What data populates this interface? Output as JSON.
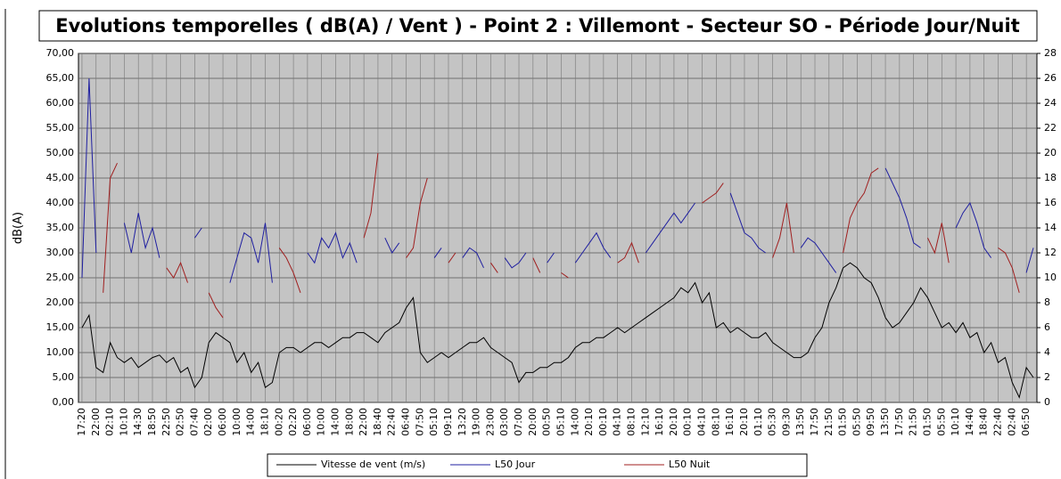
{
  "chart_data": {
    "type": "line",
    "title": "Evolutions temporelles ( dB(A) / Vent ) - Point 2 : Villemont - Secteur SO - Période Jour/Nuit",
    "y_label": "dB(A)",
    "categories": [
      "17:20",
      null,
      "22:00",
      null,
      "02:10",
      null,
      "10:10",
      null,
      "14:30",
      null,
      "18:50",
      null,
      "22:50",
      null,
      "02:50",
      null,
      "07:40",
      null,
      "02:00",
      null,
      "06:00",
      null,
      "10:00",
      null,
      "14:00",
      null,
      "18:10",
      null,
      "00:20",
      null,
      "02:20",
      null,
      "06:00",
      null,
      "10:00",
      null,
      "14:00",
      null,
      "18:00",
      null,
      "22:00",
      null,
      "18:40",
      null,
      "22:40",
      null,
      "06:40",
      null,
      "07:50",
      null,
      "05:10",
      null,
      "09:10",
      null,
      "13:20",
      null,
      "19:00",
      null,
      "23:00",
      null,
      "03:00",
      null,
      "07:00",
      null,
      "20:00",
      null,
      "00:50",
      null,
      "05:10",
      null,
      "14:00",
      null,
      "20:10",
      null,
      "00:10",
      null,
      "04:10",
      null,
      "08:10",
      null,
      "12:10",
      null,
      "16:10",
      null,
      "20:10",
      null,
      "00:10",
      null,
      "04:10",
      null,
      "08:10",
      null,
      "16:10",
      null,
      "20:10",
      null,
      "01:10",
      null,
      "05:30",
      null,
      "09:30",
      null,
      "13:50",
      null,
      "17:50",
      null,
      "21:50",
      null,
      "01:50",
      null,
      "05:50",
      null,
      "09:50",
      null,
      "13:50",
      null,
      "17:50",
      null,
      "21:50",
      null,
      "01:50",
      null,
      "05:50",
      null,
      "10:10",
      null,
      "14:40",
      null,
      "18:40",
      null,
      "22:40",
      null,
      "02:40",
      null,
      "06:50",
      null
    ],
    "series": [
      {
        "name": "Vitesse de vent (m/s)",
        "color": "#000000",
        "axis": "y2",
        "values": [
          6,
          7,
          2.8,
          2.4,
          4.8,
          3.6,
          3.2,
          3.6,
          2.8,
          3.2,
          3.6,
          3.8,
          3.2,
          3.6,
          2.4,
          2.8,
          1.2,
          2,
          4.8,
          5.6,
          5.2,
          4.8,
          3.2,
          4,
          2.4,
          3.2,
          1.2,
          1.6,
          4,
          4.4,
          4.4,
          4,
          4.4,
          4.8,
          4.8,
          4.4,
          4.8,
          5.2,
          5.2,
          5.6,
          5.6,
          5.2,
          4.8,
          5.6,
          6,
          6.4,
          7.6,
          8.4,
          4,
          3.2,
          3.6,
          4,
          3.6,
          4,
          4.4,
          4.8,
          4.8,
          5.2,
          4.4,
          4,
          3.6,
          3.2,
          1.6,
          2.4,
          2.4,
          2.8,
          2.8,
          3.2,
          3.2,
          3.6,
          4.4,
          4.8,
          4.8,
          5.2,
          5.2,
          5.6,
          6,
          5.6,
          6,
          6.4,
          6.8,
          7.2,
          7.6,
          8,
          8.4,
          9.2,
          8.8,
          9.6,
          8,
          8.8,
          6,
          6.4,
          5.6,
          6,
          5.6,
          5.2,
          5.2,
          5.6,
          4.8,
          4.4,
          4,
          3.6,
          3.6,
          4,
          5.2,
          6,
          8,
          9.2,
          10.8,
          11.2,
          10.8,
          10,
          9.6,
          8.4,
          6.8,
          6,
          6.4,
          7.2,
          8,
          9.2,
          8.4,
          7.2,
          6,
          6.4,
          5.6,
          6.4,
          5.2,
          5.6,
          4,
          4.8,
          3.2,
          3.6,
          1.6,
          0.4,
          2.8,
          2
        ]
      },
      {
        "name": "L50 Jour",
        "color": "#1f1fa0",
        "values": [
          25,
          65,
          30,
          null,
          null,
          null,
          36,
          30,
          38,
          31,
          35,
          29,
          null,
          null,
          null,
          null,
          33,
          35,
          null,
          null,
          null,
          24,
          29,
          34,
          33,
          28,
          36,
          24,
          null,
          null,
          null,
          null,
          30,
          28,
          33,
          31,
          34,
          29,
          32,
          28,
          null,
          null,
          null,
          33,
          30,
          32,
          null,
          null,
          null,
          null,
          29,
          31,
          null,
          null,
          29,
          31,
          30,
          27,
          null,
          null,
          29,
          27,
          28,
          30,
          null,
          null,
          28,
          30,
          null,
          null,
          28,
          30,
          32,
          34,
          31,
          29,
          null,
          null,
          null,
          null,
          30,
          32,
          34,
          36,
          38,
          36,
          38,
          40,
          null,
          null,
          null,
          null,
          42,
          38,
          34,
          33,
          31,
          30,
          null,
          null,
          null,
          null,
          31,
          33,
          32,
          30,
          28,
          26,
          null,
          null,
          null,
          null,
          null,
          null,
          47,
          44,
          41,
          37,
          32,
          31,
          null,
          null,
          null,
          null,
          35,
          38,
          40,
          36,
          31,
          29,
          null,
          null,
          null,
          null,
          26,
          31
        ]
      },
      {
        "name": "L50 Nuit",
        "color": "#a01f1f",
        "values": [
          null,
          null,
          null,
          22,
          45,
          48,
          null,
          null,
          null,
          null,
          null,
          null,
          27,
          25,
          28,
          24,
          null,
          null,
          22,
          19,
          17,
          null,
          null,
          null,
          null,
          null,
          null,
          null,
          31,
          29,
          26,
          22,
          null,
          null,
          null,
          null,
          null,
          null,
          null,
          null,
          33,
          38,
          50,
          null,
          null,
          null,
          29,
          31,
          40,
          45,
          null,
          null,
          28,
          30,
          null,
          null,
          null,
          null,
          28,
          26,
          null,
          null,
          null,
          null,
          29,
          26,
          null,
          null,
          26,
          25,
          null,
          null,
          null,
          null,
          null,
          null,
          28,
          29,
          32,
          28,
          null,
          null,
          null,
          null,
          null,
          null,
          null,
          null,
          40,
          41,
          42,
          44,
          null,
          null,
          null,
          null,
          null,
          null,
          29,
          33,
          40,
          30,
          null,
          null,
          null,
          null,
          null,
          null,
          30,
          37,
          40,
          42,
          46,
          47,
          null,
          null,
          null,
          null,
          null,
          null,
          33,
          30,
          36,
          28,
          null,
          null,
          null,
          null,
          null,
          null,
          31,
          30,
          27,
          22,
          null,
          null
        ]
      }
    ],
    "ylim": [
      0,
      70
    ],
    "yticks": [
      {
        "value": 0,
        "label": "0,00"
      },
      {
        "value": 5,
        "label": "5,00"
      },
      {
        "value": 10,
        "label": "10,00"
      },
      {
        "value": 15,
        "label": "15,00"
      },
      {
        "value": 20,
        "label": "20,00"
      },
      {
        "value": 25,
        "label": "25,00"
      },
      {
        "value": 30,
        "label": "30,00"
      },
      {
        "value": 35,
        "label": "35,00"
      },
      {
        "value": 40,
        "label": "40,00"
      },
      {
        "value": 45,
        "label": "45,00"
      },
      {
        "value": 50,
        "label": "50,00"
      },
      {
        "value": 55,
        "label": "55,00"
      },
      {
        "value": 60,
        "label": "60,00"
      },
      {
        "value": 65,
        "label": "65,00"
      },
      {
        "value": 70,
        "label": "70,00"
      }
    ],
    "y2lim": [
      0,
      28
    ],
    "y2ticks": [
      0,
      2,
      4,
      6,
      8,
      10,
      12,
      14,
      16,
      18,
      20,
      22,
      24,
      26,
      28
    ],
    "grid": true,
    "legend": "bottom"
  }
}
